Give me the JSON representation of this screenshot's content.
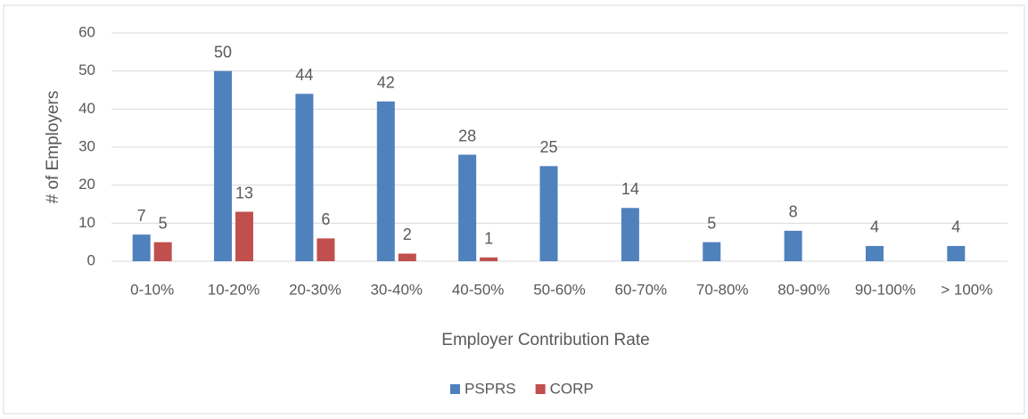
{
  "chart_data": {
    "type": "bar",
    "categories": [
      "0-10%",
      "10-20%",
      "20-30%",
      "30-40%",
      "40-50%",
      "50-60%",
      "60-70%",
      "70-80%",
      "80-90%",
      "90-100%",
      "> 100%"
    ],
    "series": [
      {
        "name": "PSPRS",
        "color": "#4f81bd",
        "values": [
          7,
          50,
          44,
          42,
          28,
          25,
          14,
          5,
          8,
          4,
          4
        ]
      },
      {
        "name": "CORP",
        "color": "#c0504d",
        "values": [
          5,
          13,
          6,
          2,
          1,
          null,
          null,
          null,
          null,
          null,
          null
        ]
      }
    ],
    "x_label": "Employer Contribution Rate",
    "y_label": "# of Employers",
    "ylim": [
      0,
      60
    ],
    "yticks": [
      0,
      10,
      20,
      30,
      40,
      50,
      60
    ],
    "grid": true,
    "legend": "bottom"
  }
}
